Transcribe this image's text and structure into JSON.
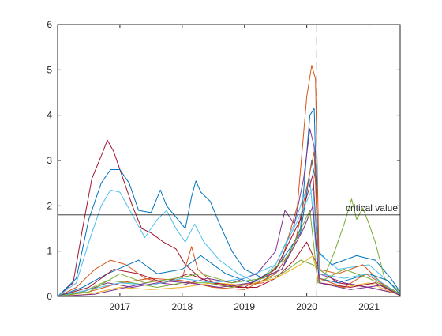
{
  "chart_data": {
    "type": "line",
    "title": "",
    "xlabel": "",
    "ylabel": "",
    "xlim": [
      2016.0,
      2021.5
    ],
    "ylim": [
      0,
      6
    ],
    "xticks": [
      2017,
      2018,
      2019,
      2020,
      2021
    ],
    "xtick_labels": [
      "2017",
      "2018",
      "2019",
      "2020",
      "2021"
    ],
    "yticks": [
      0,
      1,
      2,
      3,
      4,
      5,
      6
    ],
    "ytick_labels": [
      "0",
      "1",
      "2",
      "3",
      "4",
      "5",
      "6"
    ],
    "grid": false,
    "legend": "none",
    "reference_lines": [
      {
        "orientation": "horizontal",
        "value": 1.8,
        "label": "critical value",
        "style": "solid",
        "color": "#262626"
      },
      {
        "orientation": "vertical",
        "value": 2020.16,
        "label": "",
        "style": "dashed",
        "color": "#262626"
      }
    ],
    "series": [
      {
        "color": "#A2142F",
        "points": [
          [
            2016.0,
            0
          ],
          [
            2016.25,
            0.3
          ],
          [
            2016.4,
            1.5
          ],
          [
            2016.55,
            2.6
          ],
          [
            2016.7,
            3.1
          ],
          [
            2016.8,
            3.45
          ],
          [
            2016.9,
            3.2
          ],
          [
            2017.05,
            2.6
          ],
          [
            2017.2,
            2.0
          ],
          [
            2017.35,
            1.5
          ],
          [
            2017.5,
            1.4
          ],
          [
            2017.7,
            1.2
          ],
          [
            2017.9,
            1.05
          ],
          [
            2018.05,
            0.7
          ],
          [
            2018.3,
            0.4
          ],
          [
            2018.6,
            0.25
          ],
          [
            2018.9,
            0.2
          ],
          [
            2019.2,
            0.2
          ],
          [
            2019.5,
            0.4
          ],
          [
            2019.8,
            0.8
          ],
          [
            2020.0,
            1.2
          ],
          [
            2020.2,
            0.6
          ],
          [
            2020.5,
            0.3
          ],
          [
            2021.0,
            0.2
          ],
          [
            2021.5,
            0.05
          ]
        ]
      },
      {
        "color": "#0072BD",
        "points": [
          [
            2016.0,
            0
          ],
          [
            2016.3,
            0.4
          ],
          [
            2016.5,
            1.7
          ],
          [
            2016.7,
            2.5
          ],
          [
            2016.85,
            2.8
          ],
          [
            2017.0,
            2.8
          ],
          [
            2017.15,
            2.5
          ],
          [
            2017.3,
            1.9
          ],
          [
            2017.5,
            1.85
          ],
          [
            2017.65,
            2.35
          ],
          [
            2017.75,
            2.0
          ],
          [
            2017.9,
            1.75
          ],
          [
            2018.05,
            1.5
          ],
          [
            2018.15,
            2.2
          ],
          [
            2018.22,
            2.55
          ],
          [
            2018.3,
            2.3
          ],
          [
            2018.45,
            2.1
          ],
          [
            2018.6,
            1.6
          ],
          [
            2018.8,
            1.0
          ],
          [
            2019.0,
            0.6
          ],
          [
            2019.3,
            0.4
          ],
          [
            2019.6,
            0.6
          ],
          [
            2019.9,
            1.5
          ],
          [
            2020.05,
            4.0
          ],
          [
            2020.12,
            4.15
          ],
          [
            2020.18,
            1.0
          ],
          [
            2020.4,
            0.7
          ],
          [
            2020.8,
            0.9
          ],
          [
            2021.1,
            0.8
          ],
          [
            2021.35,
            0.4
          ],
          [
            2021.5,
            0.1
          ]
        ]
      },
      {
        "color": "#4DBEEE",
        "points": [
          [
            2016.0,
            0
          ],
          [
            2016.3,
            0.3
          ],
          [
            2016.5,
            1.2
          ],
          [
            2016.7,
            2.0
          ],
          [
            2016.85,
            2.35
          ],
          [
            2017.0,
            2.3
          ],
          [
            2017.2,
            1.8
          ],
          [
            2017.4,
            1.3
          ],
          [
            2017.6,
            1.7
          ],
          [
            2017.75,
            1.9
          ],
          [
            2017.9,
            1.5
          ],
          [
            2018.05,
            1.2
          ],
          [
            2018.2,
            1.6
          ],
          [
            2018.35,
            1.2
          ],
          [
            2018.6,
            0.8
          ],
          [
            2018.9,
            0.5
          ],
          [
            2019.2,
            0.3
          ],
          [
            2019.5,
            0.7
          ],
          [
            2019.8,
            1.6
          ],
          [
            2020.05,
            2.6
          ],
          [
            2020.15,
            1.0
          ],
          [
            2020.5,
            0.6
          ],
          [
            2021.0,
            0.7
          ],
          [
            2021.5,
            0.1
          ]
        ]
      },
      {
        "color": "#D95319",
        "points": [
          [
            2016.0,
            0
          ],
          [
            2016.3,
            0.2
          ],
          [
            2016.6,
            0.6
          ],
          [
            2016.85,
            0.8
          ],
          [
            2017.1,
            0.7
          ],
          [
            2017.4,
            0.4
          ],
          [
            2017.7,
            0.3
          ],
          [
            2018.0,
            0.4
          ],
          [
            2018.15,
            1.1
          ],
          [
            2018.25,
            0.6
          ],
          [
            2018.5,
            0.3
          ],
          [
            2018.9,
            0.25
          ],
          [
            2019.3,
            0.3
          ],
          [
            2019.6,
            0.8
          ],
          [
            2019.85,
            2.0
          ],
          [
            2020.0,
            4.4
          ],
          [
            2020.08,
            5.1
          ],
          [
            2020.14,
            4.8
          ],
          [
            2020.2,
            0.6
          ],
          [
            2020.5,
            0.5
          ],
          [
            2020.9,
            0.7
          ],
          [
            2021.2,
            0.3
          ],
          [
            2021.5,
            0.05
          ]
        ]
      },
      {
        "color": "#7E2F8E",
        "points": [
          [
            2016.0,
            0
          ],
          [
            2016.4,
            0.1
          ],
          [
            2016.8,
            0.3
          ],
          [
            2017.2,
            0.2
          ],
          [
            2017.6,
            0.3
          ],
          [
            2018.0,
            0.25
          ],
          [
            2018.4,
            0.4
          ],
          [
            2018.8,
            0.3
          ],
          [
            2019.2,
            0.5
          ],
          [
            2019.5,
            1.0
          ],
          [
            2019.65,
            1.9
          ],
          [
            2019.8,
            1.6
          ],
          [
            2019.95,
            2.6
          ],
          [
            2020.05,
            3.7
          ],
          [
            2020.12,
            3.3
          ],
          [
            2020.2,
            0.5
          ],
          [
            2020.6,
            0.3
          ],
          [
            2021.0,
            0.2
          ],
          [
            2021.5,
            0.05
          ]
        ]
      },
      {
        "color": "#77AC30",
        "points": [
          [
            2016.0,
            0
          ],
          [
            2016.4,
            0.1
          ],
          [
            2016.8,
            0.35
          ],
          [
            2017.2,
            0.3
          ],
          [
            2017.6,
            0.2
          ],
          [
            2018.0,
            0.3
          ],
          [
            2018.4,
            0.3
          ],
          [
            2018.8,
            0.2
          ],
          [
            2019.2,
            0.3
          ],
          [
            2019.6,
            0.5
          ],
          [
            2019.9,
            0.8
          ],
          [
            2020.1,
            0.7
          ],
          [
            2020.3,
            0.5
          ],
          [
            2020.45,
            1.0
          ],
          [
            2020.6,
            1.6
          ],
          [
            2020.72,
            2.15
          ],
          [
            2020.8,
            1.7
          ],
          [
            2020.9,
            1.95
          ],
          [
            2021.0,
            1.6
          ],
          [
            2021.1,
            1.2
          ],
          [
            2021.25,
            0.4
          ],
          [
            2021.5,
            0.1
          ]
        ]
      },
      {
        "color": "#EDB120",
        "points": [
          [
            2016.0,
            0
          ],
          [
            2016.5,
            0.05
          ],
          [
            2017.0,
            0.2
          ],
          [
            2017.5,
            0.15
          ],
          [
            2018.0,
            0.2
          ],
          [
            2018.5,
            0.3
          ],
          [
            2019.0,
            0.25
          ],
          [
            2019.5,
            0.4
          ],
          [
            2019.9,
            0.7
          ],
          [
            2020.1,
            0.9
          ],
          [
            2020.2,
            0.3
          ],
          [
            2020.6,
            0.2
          ],
          [
            2021.0,
            0.3
          ],
          [
            2021.5,
            0.02
          ]
        ]
      },
      {
        "color": "#0072BD",
        "points": [
          [
            2016.0,
            0
          ],
          [
            2016.4,
            0.2
          ],
          [
            2016.8,
            0.5
          ],
          [
            2017.3,
            0.8
          ],
          [
            2017.6,
            0.5
          ],
          [
            2018.0,
            0.6
          ],
          [
            2018.3,
            0.9
          ],
          [
            2018.7,
            0.5
          ],
          [
            2019.1,
            0.3
          ],
          [
            2019.5,
            0.6
          ],
          [
            2019.9,
            1.4
          ],
          [
            2020.08,
            3.0
          ],
          [
            2020.15,
            2.5
          ],
          [
            2020.2,
            0.4
          ],
          [
            2020.5,
            0.3
          ],
          [
            2021.0,
            0.5
          ],
          [
            2021.3,
            0.35
          ],
          [
            2021.5,
            0.05
          ]
        ]
      },
      {
        "color": "#D95319",
        "points": [
          [
            2016.0,
            0
          ],
          [
            2016.5,
            0.1
          ],
          [
            2017.0,
            0.3
          ],
          [
            2017.5,
            0.4
          ],
          [
            2018.0,
            0.35
          ],
          [
            2018.5,
            0.2
          ],
          [
            2019.0,
            0.15
          ],
          [
            2019.5,
            0.5
          ],
          [
            2019.8,
            1.1
          ],
          [
            2020.0,
            2.4
          ],
          [
            2020.12,
            3.2
          ],
          [
            2020.2,
            0.4
          ],
          [
            2020.6,
            0.2
          ],
          [
            2020.95,
            0.5
          ],
          [
            2021.3,
            0.2
          ],
          [
            2021.5,
            0.02
          ]
        ]
      },
      {
        "color": "#A2142F",
        "points": [
          [
            2016.0,
            0
          ],
          [
            2016.5,
            0.2
          ],
          [
            2016.9,
            0.6
          ],
          [
            2017.3,
            0.5
          ],
          [
            2017.7,
            0.3
          ],
          [
            2018.1,
            0.5
          ],
          [
            2018.5,
            0.3
          ],
          [
            2019.0,
            0.2
          ],
          [
            2019.5,
            0.6
          ],
          [
            2019.9,
            1.7
          ],
          [
            2020.1,
            2.7
          ],
          [
            2020.2,
            0.3
          ],
          [
            2020.7,
            0.2
          ],
          [
            2021.1,
            0.3
          ],
          [
            2021.5,
            0.02
          ]
        ]
      },
      {
        "color": "#4DBEEE",
        "points": [
          [
            2016.0,
            0
          ],
          [
            2016.5,
            0.15
          ],
          [
            2017.0,
            0.3
          ],
          [
            2017.5,
            0.25
          ],
          [
            2018.0,
            0.4
          ],
          [
            2018.5,
            0.3
          ],
          [
            2019.0,
            0.4
          ],
          [
            2019.5,
            0.7
          ],
          [
            2019.9,
            1.8
          ],
          [
            2020.1,
            2.4
          ],
          [
            2020.2,
            0.5
          ],
          [
            2020.6,
            0.4
          ],
          [
            2021.0,
            0.5
          ],
          [
            2021.5,
            0.03
          ]
        ]
      },
      {
        "color": "#7E2F8E",
        "points": [
          [
            2016.0,
            0
          ],
          [
            2016.6,
            0.05
          ],
          [
            2017.1,
            0.2
          ],
          [
            2017.6,
            0.35
          ],
          [
            2018.1,
            0.3
          ],
          [
            2018.6,
            0.2
          ],
          [
            2019.1,
            0.3
          ],
          [
            2019.6,
            0.6
          ],
          [
            2019.95,
            1.5
          ],
          [
            2020.1,
            2.0
          ],
          [
            2020.2,
            0.3
          ],
          [
            2020.7,
            0.15
          ],
          [
            2021.2,
            0.25
          ],
          [
            2021.5,
            0.02
          ]
        ]
      },
      {
        "color": "#77AC30",
        "points": [
          [
            2016.0,
            0
          ],
          [
            2016.5,
            0.1
          ],
          [
            2017.0,
            0.5
          ],
          [
            2017.4,
            0.3
          ],
          [
            2017.9,
            0.4
          ],
          [
            2018.3,
            0.5
          ],
          [
            2018.8,
            0.3
          ],
          [
            2019.3,
            0.4
          ],
          [
            2019.7,
            0.9
          ],
          [
            2020.05,
            1.9
          ],
          [
            2020.18,
            0.3
          ],
          [
            2020.6,
            0.6
          ],
          [
            2021.0,
            0.4
          ],
          [
            2021.5,
            0.05
          ]
        ]
      }
    ]
  }
}
